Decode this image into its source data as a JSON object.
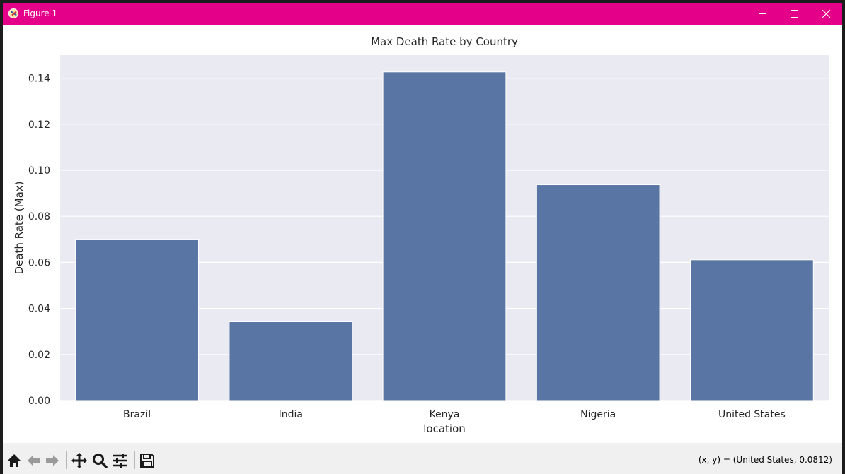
{
  "window": {
    "title": "Figure 1",
    "titlebar_color": "#e5008a",
    "controls": [
      "minimize-icon",
      "maximize-icon",
      "close-icon"
    ]
  },
  "chart_data": {
    "type": "bar",
    "title": "Max Death Rate by Country",
    "xlabel": "location",
    "ylabel": "Death Rate (Max)",
    "categories": [
      "Brazil",
      "India",
      "Kenya",
      "Nigeria",
      "United States"
    ],
    "values": [
      0.0698,
      0.0342,
      0.1427,
      0.0937,
      0.0611
    ],
    "ylim": [
      0,
      0.15
    ],
    "yticks": [
      0,
      0.02,
      0.04,
      0.06,
      0.08,
      0.1,
      0.12,
      0.14
    ],
    "ytick_labels": [
      "0.00",
      "0.02",
      "0.04",
      "0.06",
      "0.08",
      "0.10",
      "0.12",
      "0.14"
    ],
    "grid": true,
    "bar_color": "#5975a4",
    "background_color": "#eaeaf2"
  },
  "toolbar": {
    "buttons": [
      "home-icon",
      "back-icon",
      "forward-icon",
      "pan-icon",
      "zoom-icon",
      "configure-icon",
      "save-icon"
    ],
    "coords_text": "(x, y) = (United States, 0.0812)"
  }
}
